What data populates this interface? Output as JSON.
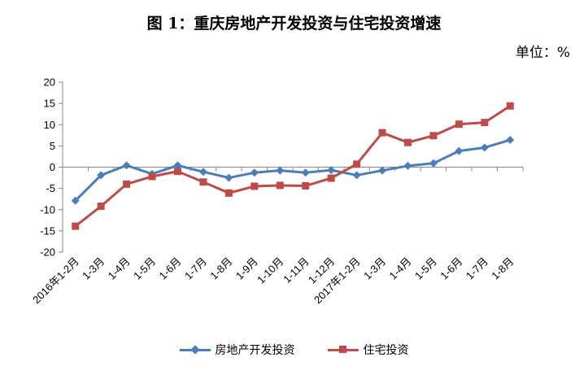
{
  "chart_data": {
    "type": "line",
    "title": "图 1：重庆房地产开发投资与住宅投资增速",
    "unit_label": "单位：%",
    "categories": [
      "2016年1-2月",
      "1-3月",
      "1-4月",
      "1-5月",
      "1-6月",
      "1-7月",
      "1-8月",
      "1-9月",
      "1-10月",
      "1-11月",
      "1-12月",
      "2017年1-2月",
      "1-3月",
      "1-4月",
      "1-5月",
      "1-6月",
      "1-7月",
      "1-8月"
    ],
    "ylim": [
      -20,
      20
    ],
    "yticks": [
      20,
      15,
      10,
      5,
      0,
      -5,
      -10,
      -15,
      -20
    ],
    "series": [
      {
        "name": "房地产开发投资",
        "color": "#4a7ebb",
        "marker": "diamond",
        "values": [
          -7.9,
          -1.9,
          0.4,
          -1.6,
          0.4,
          -1.1,
          -2.5,
          -1.3,
          -0.8,
          -1.3,
          -0.7,
          -1.9,
          -0.8,
          0.3,
          0.9,
          3.8,
          4.6,
          6.4
        ]
      },
      {
        "name": "住宅投资",
        "color": "#be4b48",
        "marker": "square",
        "values": [
          -13.9,
          -9.2,
          -4.0,
          -2.2,
          -1.0,
          -3.5,
          -6.1,
          -4.5,
          -4.3,
          -4.4,
          -2.6,
          0.7,
          8.1,
          5.8,
          7.4,
          10.1,
          10.5,
          14.4
        ]
      }
    ],
    "grid": false,
    "legend_position": "bottom"
  }
}
